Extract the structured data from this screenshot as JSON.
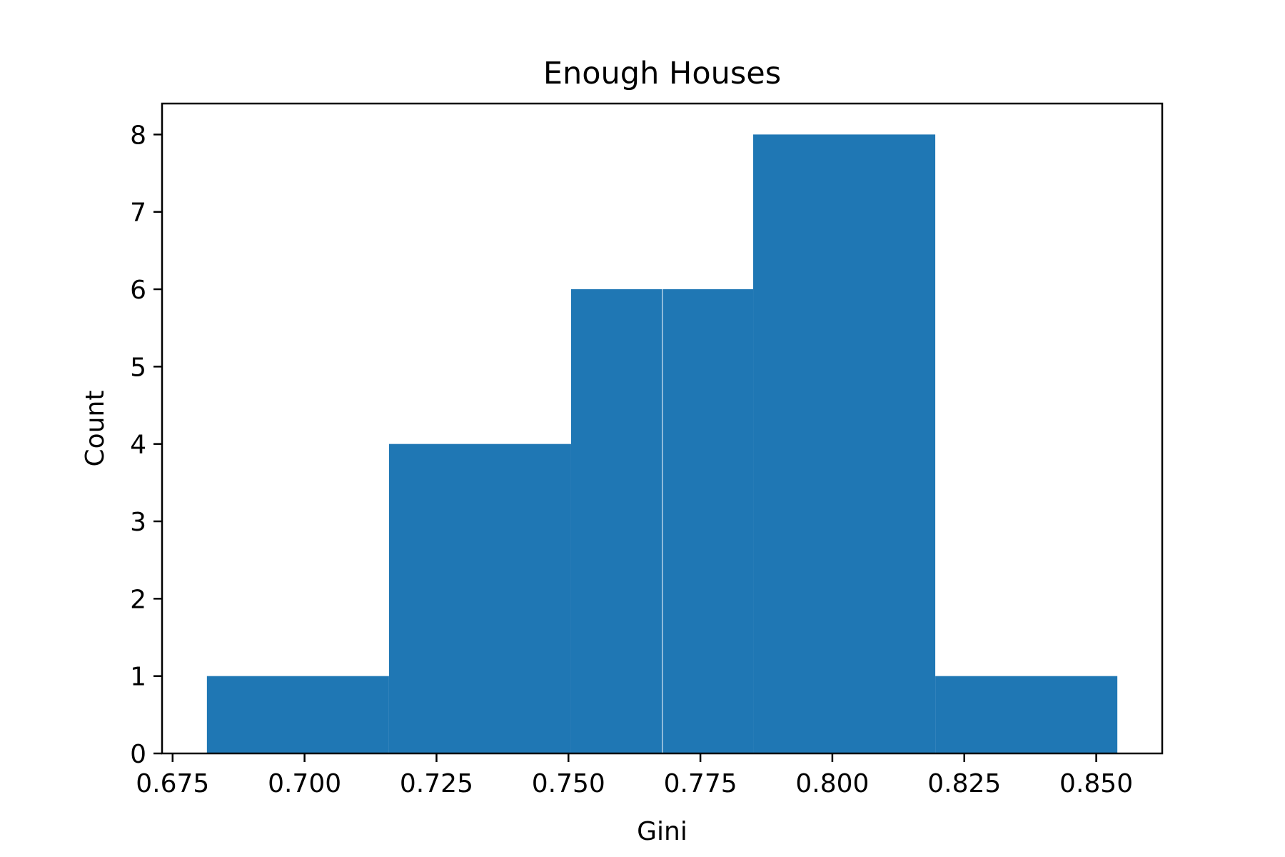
{
  "chart_data": {
    "type": "bar",
    "subtype": "histogram",
    "title": "Enough Houses",
    "xlabel": "Gini",
    "ylabel": "Count",
    "bins": [
      {
        "x0": 0.6815,
        "x1": 0.716,
        "count": 1
      },
      {
        "x0": 0.716,
        "x1": 0.7505,
        "count": 4
      },
      {
        "x0": 0.7505,
        "x1": 0.7678,
        "count": 6
      },
      {
        "x0": 0.7678,
        "x1": 0.785,
        "count": 6
      },
      {
        "x0": 0.785,
        "x1": 0.8195,
        "count": 8
      },
      {
        "x0": 0.8195,
        "x1": 0.854,
        "count": 1
      }
    ],
    "xlim": [
      0.673,
      0.8625
    ],
    "ylim": [
      0,
      8.4
    ],
    "xticks": [
      "0.675",
      "0.700",
      "0.725",
      "0.750",
      "0.775",
      "0.800",
      "0.825",
      "0.850"
    ],
    "yticks": [
      "0",
      "1",
      "2",
      "3",
      "4",
      "5",
      "6",
      "7",
      "8"
    ],
    "grid": false,
    "legend": "none",
    "bar_color": "#1f77b4"
  }
}
